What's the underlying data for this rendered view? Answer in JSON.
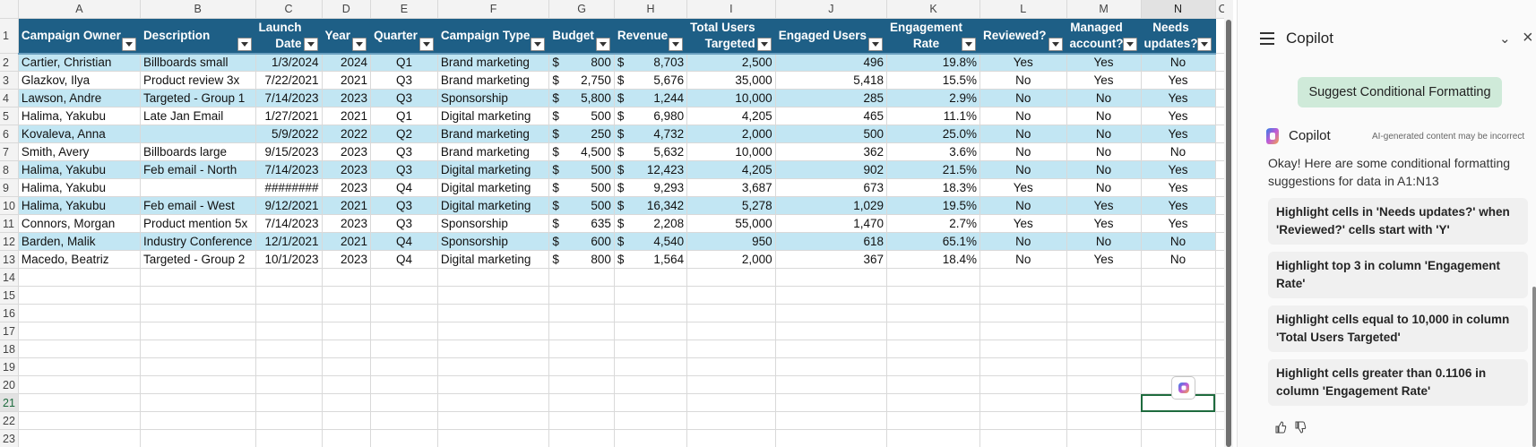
{
  "sheet": {
    "column_letters": [
      "A",
      "B",
      "C",
      "D",
      "E",
      "F",
      "G",
      "H",
      "I",
      "J",
      "K",
      "L",
      "M",
      "N",
      "O"
    ],
    "row_numbers": [
      "1",
      "2",
      "3",
      "4",
      "5",
      "6",
      "7",
      "8",
      "9",
      "10",
      "11",
      "12",
      "13",
      "14",
      "15",
      "16",
      "17",
      "18",
      "19",
      "20",
      "21",
      "22",
      "23"
    ],
    "selected_cell": "N21",
    "headers": {
      "campaign_owner": "Campaign Owner",
      "description": "Description",
      "launch_date_1": "Launch",
      "launch_date_2": "Date",
      "year": "Year",
      "quarter": "Quarter",
      "campaign_type": "Campaign Type",
      "budget": "Budget",
      "revenue": "Revenue",
      "total_users_1": "Total Users",
      "total_users_2": "Targeted",
      "engaged_users": "Engaged Users",
      "engagement_rate_1": "Engagement",
      "engagement_rate_2": "Rate",
      "reviewed": "Reviewed?",
      "managed_1": "Managed",
      "managed_2": "account?",
      "needs_updates_1": "Needs",
      "needs_updates_2": "updates?"
    },
    "rows": [
      {
        "owner": "Cartier, Christian",
        "desc": "Billboards small",
        "date": "1/3/2024",
        "year": "2024",
        "quarter": "Q1",
        "type": "Brand marketing",
        "budget": "800",
        "revenue": "8,703",
        "users": "2,500",
        "engaged": "496",
        "rate": "19.8%",
        "reviewed": "Yes",
        "managed": "Yes",
        "needs": "No"
      },
      {
        "owner": "Glazkov, Ilya",
        "desc": "Product review 3x",
        "date": "7/22/2021",
        "year": "2021",
        "quarter": "Q3",
        "type": "Brand marketing",
        "budget": "2,750",
        "revenue": "5,676",
        "users": "35,000",
        "engaged": "5,418",
        "rate": "15.5%",
        "reviewed": "No",
        "managed": "Yes",
        "needs": "Yes"
      },
      {
        "owner": "Lawson, Andre",
        "desc": "Targeted - Group 1",
        "date": "7/14/2023",
        "year": "2023",
        "quarter": "Q3",
        "type": "Sponsorship",
        "budget": "5,800",
        "revenue": "1,244",
        "users": "10,000",
        "engaged": "285",
        "rate": "2.9%",
        "reviewed": "No",
        "managed": "No",
        "needs": "Yes"
      },
      {
        "owner": "Halima, Yakubu",
        "desc": "Late Jan Email",
        "date": "1/27/2021",
        "year": "2021",
        "quarter": "Q1",
        "type": "Digital marketing",
        "budget": "500",
        "revenue": "6,980",
        "users": "4,205",
        "engaged": "465",
        "rate": "11.1%",
        "reviewed": "No",
        "managed": "No",
        "needs": "Yes"
      },
      {
        "owner": "Kovaleva, Anna",
        "desc": "",
        "date": "5/9/2022",
        "year": "2022",
        "quarter": "Q2",
        "type": "Brand marketing",
        "budget": "250",
        "revenue": "4,732",
        "users": "2,000",
        "engaged": "500",
        "rate": "25.0%",
        "reviewed": "No",
        "managed": "No",
        "needs": "Yes"
      },
      {
        "owner": "Smith, Avery",
        "desc": "Billboards large",
        "date": "9/15/2023",
        "year": "2023",
        "quarter": "Q3",
        "type": "Brand marketing",
        "budget": "4,500",
        "revenue": "5,632",
        "users": "10,000",
        "engaged": "362",
        "rate": "3.6%",
        "reviewed": "No",
        "managed": "No",
        "needs": "No"
      },
      {
        "owner": "Halima, Yakubu",
        "desc": "Feb email - North",
        "date": "7/14/2023",
        "year": "2023",
        "quarter": "Q3",
        "type": "Digital marketing",
        "budget": "500",
        "revenue": "12,423",
        "users": "4,205",
        "engaged": "902",
        "rate": "21.5%",
        "reviewed": "No",
        "managed": "No",
        "needs": "Yes"
      },
      {
        "owner": "Halima, Yakubu",
        "desc": "",
        "date": "########",
        "year": "2023",
        "quarter": "Q4",
        "type": "Digital marketing",
        "budget": "500",
        "revenue": "9,293",
        "users": "3,687",
        "engaged": "673",
        "rate": "18.3%",
        "reviewed": "Yes",
        "managed": "No",
        "needs": "Yes"
      },
      {
        "owner": "Halima, Yakubu",
        "desc": "Feb email - West",
        "date": "9/12/2021",
        "year": "2021",
        "quarter": "Q3",
        "type": "Digital marketing",
        "budget": "500",
        "revenue": "16,342",
        "users": "5,278",
        "engaged": "1,029",
        "rate": "19.5%",
        "reviewed": "No",
        "managed": "Yes",
        "needs": "Yes"
      },
      {
        "owner": "Connors, Morgan",
        "desc": "Product mention 5x",
        "date": "7/14/2023",
        "year": "2023",
        "quarter": "Q3",
        "type": "Sponsorship",
        "budget": "635",
        "revenue": "2,208",
        "users": "55,000",
        "engaged": "1,470",
        "rate": "2.7%",
        "reviewed": "Yes",
        "managed": "Yes",
        "needs": "Yes"
      },
      {
        "owner": "Barden, Malik",
        "desc": "Industry Conference",
        "date": "12/1/2021",
        "year": "2021",
        "quarter": "Q4",
        "type": "Sponsorship",
        "budget": "600",
        "revenue": "4,540",
        "users": "950",
        "engaged": "618",
        "rate": "65.1%",
        "reviewed": "No",
        "managed": "No",
        "needs": "No"
      },
      {
        "owner": "Macedo, Beatriz",
        "desc": "Targeted - Group 2",
        "date": "10/1/2023",
        "year": "2023",
        "quarter": "Q4",
        "type": "Digital marketing",
        "budget": "800",
        "revenue": "1,564",
        "users": "2,000",
        "engaged": "367",
        "rate": "18.4%",
        "reviewed": "No",
        "managed": "Yes",
        "needs": "No"
      }
    ],
    "currency_symbol": "$"
  },
  "copilot": {
    "title": "Copilot",
    "suggest_button": "Suggest Conditional Formatting",
    "assistant_name": "Copilot",
    "disclaimer": "AI-generated content may be incorrect",
    "message": "Okay! Here are some conditional formatting suggestions for data in A1:N13",
    "suggestions": [
      "Highlight cells in 'Needs updates?' when 'Reviewed?' cells start with 'Y'",
      "Highlight top 3 in column 'Engagement Rate'",
      "Highlight cells equal to 10,000 in column 'Total Users Targeted'",
      "Highlight cells greater than 0.1106 in column 'Engagement Rate'"
    ],
    "colors": {
      "suggest_bg": "#cfead9",
      "card_bg": "#f0f0f0"
    }
  },
  "colors": {
    "header_bg": "#1e5f86",
    "band_bg": "#c2e6f3",
    "selection": "#1e6b3e"
  }
}
